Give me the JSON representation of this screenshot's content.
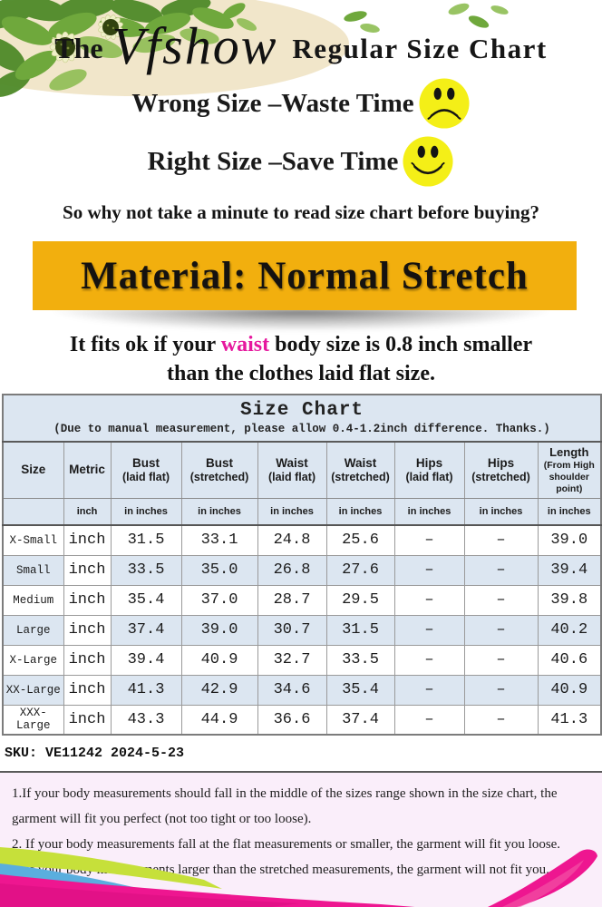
{
  "header": {
    "prefix": "The",
    "brand": "Vfshow",
    "suffix": "Regular Size Chart"
  },
  "taglines": {
    "wrong": "Wrong Size –Waste Time",
    "right": "Right Size –Save Time",
    "question": "So why not take a minute to read size chart before buying?"
  },
  "banner": {
    "text": "Material: Normal Stretch"
  },
  "fit_note": {
    "line1_before": "It fits ok if your ",
    "line1_waist": "waist",
    "line1_after": " body size is 0.8 inch smaller",
    "line2": "than the clothes laid flat size."
  },
  "size_chart": {
    "title": "Size Chart",
    "subtitle": "(Due to manual measurement, please allow 0.4-1.2inch difference. Thanks.)",
    "columns": [
      {
        "line1": "Size",
        "line2": ""
      },
      {
        "line1": "Metric",
        "line2": ""
      },
      {
        "line1": "Bust",
        "line2": "(laid flat)"
      },
      {
        "line1": "Bust",
        "line2": "(stretched)"
      },
      {
        "line1": "Waist",
        "line2": "(laid flat)"
      },
      {
        "line1": "Waist",
        "line2": "(stretched)"
      },
      {
        "line1": "Hips",
        "line2": "(laid flat)"
      },
      {
        "line1": "Hips",
        "line2": "(stretched)"
      },
      {
        "line1": "Length",
        "line2": "(From High shoulder point)"
      }
    ],
    "units_row": [
      "",
      "inch",
      "in inches",
      "in inches",
      "in inches",
      "in inches",
      "in inches",
      "in inches",
      "in inches"
    ],
    "rows": [
      {
        "size": "X-Small",
        "metric": "inch",
        "values": [
          "31.5",
          "33.1",
          "24.8",
          "25.6",
          "–",
          "–",
          "39.0"
        ]
      },
      {
        "size": "Small",
        "metric": "inch",
        "values": [
          "33.5",
          "35.0",
          "26.8",
          "27.6",
          "–",
          "–",
          "39.4"
        ]
      },
      {
        "size": "Medium",
        "metric": "inch",
        "values": [
          "35.4",
          "37.0",
          "28.7",
          "29.5",
          "–",
          "–",
          "39.8"
        ]
      },
      {
        "size": "Large",
        "metric": "inch",
        "values": [
          "37.4",
          "39.0",
          "30.7",
          "31.5",
          "–",
          "–",
          "40.2"
        ]
      },
      {
        "size": "X-Large",
        "metric": "inch",
        "values": [
          "39.4",
          "40.9",
          "32.7",
          "33.5",
          "–",
          "–",
          "40.6"
        ]
      },
      {
        "size": "XX-Large",
        "metric": "inch",
        "values": [
          "41.3",
          "42.9",
          "34.6",
          "35.4",
          "–",
          "–",
          "40.9"
        ]
      },
      {
        "size": "XXX-Large",
        "metric": "inch",
        "values": [
          "43.3",
          "44.9",
          "36.6",
          "37.4",
          "–",
          "–",
          "41.3"
        ]
      }
    ]
  },
  "sku_line": "SKU: VE11242 2024-5-23",
  "notes": [
    "1.If your body measurements should fall in the middle of the sizes range shown in the size chart, the garment will fit you perfect (not too tight or too loose).",
    "2. If your body measurements fall at the flat measurements or smaller, the garment will fit you loose.",
    "3. If your body measurements larger than the stretched measurements, the garment will not fit you."
  ],
  "colors": {
    "banner_bg": "#F2AF0E",
    "waist_text": "#E6189E",
    "table_blue": "#DCE6F1",
    "notes_bg": "#FAEEFA",
    "smiley_yellow": "#F4EF17",
    "decor_chartreuse": "#C6E03A",
    "decor_blue": "#5AAEDE",
    "decor_magenta": "#EE1690"
  },
  "chart_data": {
    "type": "table",
    "title": "Size Chart",
    "columns": [
      "Size",
      "Metric",
      "Bust (laid flat)",
      "Bust (stretched)",
      "Waist (laid flat)",
      "Waist (stretched)",
      "Hips (laid flat)",
      "Hips (stretched)",
      "Length (From High shoulder point)"
    ],
    "unit": "inches",
    "rows": [
      [
        "X-Small",
        "inch",
        31.5,
        33.1,
        24.8,
        25.6,
        null,
        null,
        39.0
      ],
      [
        "Small",
        "inch",
        33.5,
        35.0,
        26.8,
        27.6,
        null,
        null,
        39.4
      ],
      [
        "Medium",
        "inch",
        35.4,
        37.0,
        28.7,
        29.5,
        null,
        null,
        39.8
      ],
      [
        "Large",
        "inch",
        37.4,
        39.0,
        30.7,
        31.5,
        null,
        null,
        40.2
      ],
      [
        "X-Large",
        "inch",
        39.4,
        40.9,
        32.7,
        33.5,
        null,
        null,
        40.6
      ],
      [
        "XX-Large",
        "inch",
        41.3,
        42.9,
        34.6,
        35.4,
        null,
        null,
        40.9
      ],
      [
        "XXX-Large",
        "inch",
        43.3,
        44.9,
        36.6,
        37.4,
        null,
        null,
        41.3
      ]
    ]
  }
}
